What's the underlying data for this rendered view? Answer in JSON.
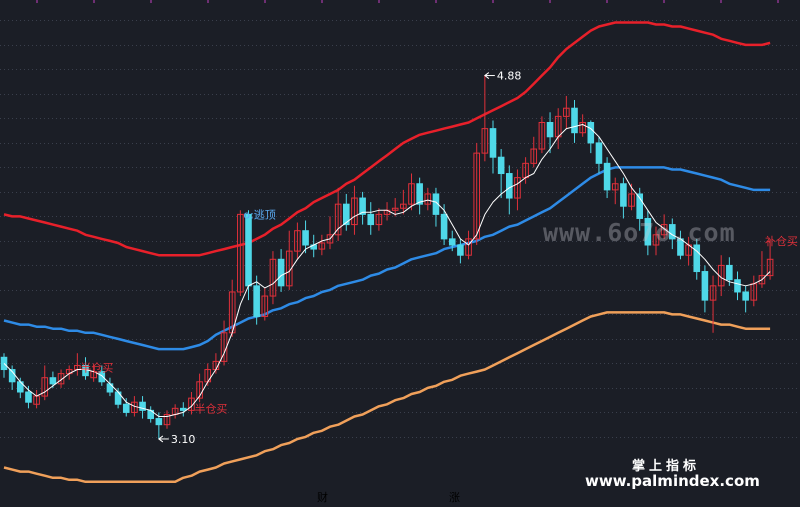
{
  "chart_data": {
    "type": "candlestick",
    "colors": {
      "background": "#1b1e26",
      "up": "#e0303a",
      "down": "#4fd8e8",
      "mid_band": "#2e8be6",
      "upper_band": "#e8202a",
      "lower_band": "#f0a05a",
      "ma_line": "#ffffff",
      "label_red": "#e0303a",
      "label_white": "#ffffff",
      "label_blue": "#5aaaf0"
    },
    "candles": [
      [
        3.5,
        3.44,
        3.52,
        3.4
      ],
      [
        3.44,
        3.38,
        3.46,
        3.34
      ],
      [
        3.38,
        3.33,
        3.4,
        3.3
      ],
      [
        3.33,
        3.28,
        3.36,
        3.25
      ],
      [
        3.27,
        3.31,
        3.34,
        3.25
      ],
      [
        3.31,
        3.4,
        3.46,
        3.29
      ],
      [
        3.4,
        3.37,
        3.43,
        3.35
      ],
      [
        3.37,
        3.42,
        3.44,
        3.35
      ],
      [
        3.42,
        3.44,
        3.46,
        3.39
      ],
      [
        3.44,
        3.46,
        3.52,
        3.41
      ],
      [
        3.46,
        3.41,
        3.5,
        3.39
      ],
      [
        3.4,
        3.43,
        3.47,
        3.38
      ],
      [
        3.43,
        3.38,
        3.46,
        3.36
      ],
      [
        3.37,
        3.33,
        3.4,
        3.31
      ],
      [
        3.33,
        3.27,
        3.35,
        3.25
      ],
      [
        3.27,
        3.23,
        3.3,
        3.21
      ],
      [
        3.23,
        3.28,
        3.31,
        3.21
      ],
      [
        3.28,
        3.24,
        3.31,
        3.2
      ],
      [
        3.24,
        3.2,
        3.26,
        3.18
      ],
      [
        3.2,
        3.17,
        3.23,
        3.1
      ],
      [
        3.17,
        3.22,
        3.24,
        3.15
      ],
      [
        3.22,
        3.25,
        3.27,
        3.2
      ],
      [
        3.25,
        3.24,
        3.28,
        3.21
      ],
      [
        3.24,
        3.3,
        3.33,
        3.22
      ],
      [
        3.3,
        3.38,
        3.42,
        3.28
      ],
      [
        3.38,
        3.44,
        3.47,
        3.36
      ],
      [
        3.44,
        3.48,
        3.52,
        3.42
      ],
      [
        3.48,
        3.62,
        3.68,
        3.46
      ],
      [
        3.62,
        3.82,
        3.88,
        3.6
      ],
      [
        3.82,
        4.2,
        4.22,
        3.8
      ],
      [
        4.2,
        3.85,
        4.22,
        3.78
      ],
      [
        3.85,
        3.7,
        3.9,
        3.66
      ],
      [
        3.7,
        3.8,
        3.84,
        3.68
      ],
      [
        3.8,
        3.98,
        4.02,
        3.76
      ],
      [
        3.98,
        3.85,
        4.03,
        3.82
      ],
      [
        3.85,
        4.02,
        4.12,
        3.83
      ],
      [
        4.02,
        4.12,
        4.16,
        3.98
      ],
      [
        4.12,
        4.05,
        4.17,
        4.01
      ],
      [
        4.05,
        4.03,
        4.1,
        3.99
      ],
      [
        4.03,
        4.06,
        4.1,
        4.0
      ],
      [
        4.06,
        4.1,
        4.19,
        4.03
      ],
      [
        4.1,
        4.25,
        4.33,
        4.07
      ],
      [
        4.25,
        4.15,
        4.3,
        4.12
      ],
      [
        4.15,
        4.28,
        4.34,
        4.1
      ],
      [
        4.28,
        4.2,
        4.31,
        4.15
      ],
      [
        4.2,
        4.15,
        4.26,
        4.1
      ],
      [
        4.15,
        4.2,
        4.23,
        4.12
      ],
      [
        4.2,
        4.22,
        4.26,
        4.17
      ],
      [
        4.22,
        4.23,
        4.28,
        4.19
      ],
      [
        4.23,
        4.25,
        4.32,
        4.2
      ],
      [
        4.25,
        4.35,
        4.4,
        4.22
      ],
      [
        4.35,
        4.25,
        4.38,
        4.2
      ],
      [
        4.25,
        4.3,
        4.33,
        4.22
      ],
      [
        4.3,
        4.2,
        4.33,
        4.14
      ],
      [
        4.2,
        4.08,
        4.25,
        4.05
      ],
      [
        4.08,
        4.05,
        4.12,
        4.02
      ],
      [
        4.05,
        4.0,
        4.08,
        3.96
      ],
      [
        4.0,
        4.08,
        4.12,
        3.98
      ],
      [
        4.08,
        4.5,
        4.55,
        4.05
      ],
      [
        4.5,
        4.62,
        4.88,
        4.46
      ],
      [
        4.62,
        4.48,
        4.66,
        4.4
      ],
      [
        4.48,
        4.4,
        4.52,
        4.28
      ],
      [
        4.4,
        4.28,
        4.44,
        4.2
      ],
      [
        4.28,
        4.38,
        4.42,
        4.22
      ],
      [
        4.38,
        4.45,
        4.48,
        4.35
      ],
      [
        4.45,
        4.52,
        4.58,
        4.43
      ],
      [
        4.52,
        4.65,
        4.68,
        4.5
      ],
      [
        4.65,
        4.58,
        4.7,
        4.5
      ],
      [
        4.58,
        4.68,
        4.72,
        4.52
      ],
      [
        4.68,
        4.72,
        4.78,
        4.62
      ],
      [
        4.72,
        4.6,
        4.76,
        4.55
      ],
      [
        4.6,
        4.65,
        4.69,
        4.58
      ],
      [
        4.65,
        4.55,
        4.66,
        4.5
      ],
      [
        4.55,
        4.45,
        4.58,
        4.4
      ],
      [
        4.45,
        4.32,
        4.48,
        4.28
      ],
      [
        4.32,
        4.35,
        4.38,
        4.25
      ],
      [
        4.35,
        4.24,
        4.38,
        4.18
      ],
      [
        4.24,
        4.3,
        4.35,
        4.22
      ],
      [
        4.3,
        4.18,
        4.33,
        4.12
      ],
      [
        4.18,
        4.05,
        4.22,
        4.0
      ],
      [
        4.05,
        4.1,
        4.14,
        4.0
      ],
      [
        4.1,
        4.15,
        4.2,
        4.08
      ],
      [
        4.15,
        4.08,
        4.18,
        4.03
      ],
      [
        4.08,
        4.0,
        4.12,
        3.98
      ],
      [
        4.0,
        4.05,
        4.09,
        3.95
      ],
      [
        4.05,
        3.92,
        4.08,
        3.88
      ],
      [
        3.92,
        3.78,
        3.95,
        3.72
      ],
      [
        3.78,
        3.85,
        3.9,
        3.62
      ],
      [
        3.85,
        3.95,
        4.0,
        3.8
      ],
      [
        3.95,
        3.88,
        3.99,
        3.85
      ],
      [
        3.88,
        3.82,
        3.92,
        3.78
      ],
      [
        3.82,
        3.78,
        3.85,
        3.72
      ],
      [
        3.78,
        3.86,
        3.9,
        3.75
      ],
      [
        3.86,
        3.9,
        4.02,
        3.84
      ],
      [
        3.9,
        3.98,
        4.08,
        3.88
      ]
    ],
    "ma_line": [
      3.47,
      3.43,
      3.38,
      3.34,
      3.31,
      3.33,
      3.36,
      3.39,
      3.42,
      3.44,
      3.44,
      3.43,
      3.41,
      3.37,
      3.33,
      3.28,
      3.26,
      3.25,
      3.24,
      3.21,
      3.21,
      3.22,
      3.23,
      3.26,
      3.31,
      3.38,
      3.44,
      3.52,
      3.62,
      3.76,
      3.85,
      3.87,
      3.84,
      3.86,
      3.9,
      3.92,
      3.98,
      4.03,
      4.05,
      4.07,
      4.08,
      4.13,
      4.16,
      4.19,
      4.21,
      4.21,
      4.22,
      4.22,
      4.2,
      4.21,
      4.24,
      4.26,
      4.27,
      4.26,
      4.22,
      4.15,
      4.08,
      4.05,
      4.1,
      4.2,
      4.26,
      4.3,
      4.33,
      4.35,
      4.38,
      4.4,
      4.47,
      4.52,
      4.58,
      4.62,
      4.63,
      4.64,
      4.62,
      4.58,
      4.52,
      4.46,
      4.4,
      4.33,
      4.28,
      4.22,
      4.16,
      4.13,
      4.1,
      4.08,
      4.05,
      4.02,
      3.98,
      3.93,
      3.89,
      3.87,
      3.86,
      3.85,
      3.86,
      3.88,
      3.92
    ],
    "mid_band": [
      3.68,
      3.67,
      3.66,
      3.66,
      3.65,
      3.65,
      3.64,
      3.64,
      3.63,
      3.63,
      3.62,
      3.62,
      3.61,
      3.6,
      3.59,
      3.58,
      3.57,
      3.56,
      3.55,
      3.54,
      3.54,
      3.54,
      3.54,
      3.55,
      3.56,
      3.58,
      3.61,
      3.63,
      3.65,
      3.67,
      3.69,
      3.7,
      3.71,
      3.73,
      3.74,
      3.76,
      3.77,
      3.79,
      3.8,
      3.82,
      3.83,
      3.85,
      3.86,
      3.87,
      3.88,
      3.9,
      3.91,
      3.93,
      3.94,
      3.96,
      3.98,
      3.99,
      4.0,
      4.01,
      4.03,
      4.04,
      4.05,
      4.06,
      4.07,
      4.09,
      4.1,
      4.12,
      4.14,
      4.15,
      4.17,
      4.19,
      4.21,
      4.23,
      4.26,
      4.29,
      4.32,
      4.35,
      4.38,
      4.4,
      4.42,
      4.43,
      4.43,
      4.43,
      4.43,
      4.43,
      4.43,
      4.43,
      4.42,
      4.42,
      4.41,
      4.4,
      4.39,
      4.38,
      4.37,
      4.35,
      4.34,
      4.33,
      4.32,
      4.32,
      4.32
    ],
    "upper_band": [
      4.2,
      4.19,
      4.19,
      4.18,
      4.17,
      4.16,
      4.15,
      4.14,
      4.13,
      4.12,
      4.1,
      4.09,
      4.08,
      4.07,
      4.06,
      4.04,
      4.03,
      4.02,
      4.01,
      4.0,
      4.0,
      4.0,
      4.0,
      4.0,
      4.0,
      4.01,
      4.02,
      4.03,
      4.04,
      4.05,
      4.06,
      4.08,
      4.1,
      4.13,
      4.15,
      4.18,
      4.21,
      4.23,
      4.26,
      4.28,
      4.3,
      4.32,
      4.35,
      4.37,
      4.4,
      4.43,
      4.46,
      4.49,
      4.52,
      4.55,
      4.57,
      4.59,
      4.6,
      4.61,
      4.62,
      4.63,
      4.64,
      4.65,
      4.67,
      4.69,
      4.71,
      4.73,
      4.75,
      4.77,
      4.8,
      4.84,
      4.88,
      4.92,
      4.97,
      5.01,
      5.04,
      5.07,
      5.1,
      5.12,
      5.13,
      5.14,
      5.14,
      5.14,
      5.14,
      5.14,
      5.13,
      5.13,
      5.12,
      5.12,
      5.11,
      5.1,
      5.09,
      5.08,
      5.06,
      5.05,
      5.04,
      5.03,
      5.03,
      5.03,
      5.04
    ],
    "lower_band": [
      2.96,
      2.95,
      2.94,
      2.94,
      2.93,
      2.92,
      2.91,
      2.91,
      2.9,
      2.9,
      2.89,
      2.89,
      2.89,
      2.89,
      2.89,
      2.89,
      2.89,
      2.89,
      2.89,
      2.89,
      2.89,
      2.89,
      2.91,
      2.92,
      2.94,
      2.95,
      2.96,
      2.98,
      2.99,
      3.0,
      3.01,
      3.02,
      3.04,
      3.05,
      3.07,
      3.08,
      3.1,
      3.11,
      3.13,
      3.14,
      3.16,
      3.17,
      3.19,
      3.21,
      3.22,
      3.24,
      3.26,
      3.27,
      3.29,
      3.3,
      3.32,
      3.33,
      3.35,
      3.36,
      3.38,
      3.39,
      3.41,
      3.42,
      3.43,
      3.44,
      3.46,
      3.48,
      3.5,
      3.52,
      3.54,
      3.56,
      3.58,
      3.6,
      3.62,
      3.64,
      3.66,
      3.68,
      3.7,
      3.71,
      3.72,
      3.72,
      3.72,
      3.72,
      3.72,
      3.72,
      3.72,
      3.72,
      3.71,
      3.71,
      3.7,
      3.69,
      3.68,
      3.67,
      3.66,
      3.66,
      3.65,
      3.64,
      3.64,
      3.64,
      3.64
    ],
    "grid_levels": [
      5.15,
      5.03,
      4.91,
      4.79,
      4.67,
      4.55,
      4.43,
      4.31,
      4.19,
      4.07,
      3.95,
      3.83,
      3.71,
      3.59,
      3.47,
      3.35,
      3.23,
      3.11
    ],
    "annotations": [
      {
        "index": 59,
        "price": 4.88,
        "text": "4.88",
        "kind": "high",
        "color": "#ffffff"
      },
      {
        "index": 19,
        "price": 3.1,
        "text": "3.10",
        "kind": "low",
        "color": "#ffffff"
      },
      {
        "index": 29,
        "price": 4.2,
        "text": "o:逃顶",
        "kind": "tag",
        "color": "#5aaaf0"
      },
      {
        "index": 23,
        "price": 3.25,
        "text": "半仓买",
        "kind": "tag",
        "color": "#e0303a"
      },
      {
        "index": 9,
        "price": 3.45,
        "text": "半仓买",
        "kind": "tag",
        "color": "#e0303a"
      },
      {
        "index": 93,
        "price": 4.07,
        "text": "补仓买",
        "kind": "tag",
        "color": "#e0303a"
      }
    ],
    "footer": [
      {
        "text": "财",
        "color": "#5aaaf0"
      },
      {
        "text": "涨",
        "color": "#e0303a"
      }
    ],
    "ylim": [
      2.85,
      5.25
    ]
  },
  "watermark": {
    "brand_cn": "掌上指标",
    "brand_url": "www.palmindex.com",
    "faint_url": "www.6o7o.com"
  }
}
